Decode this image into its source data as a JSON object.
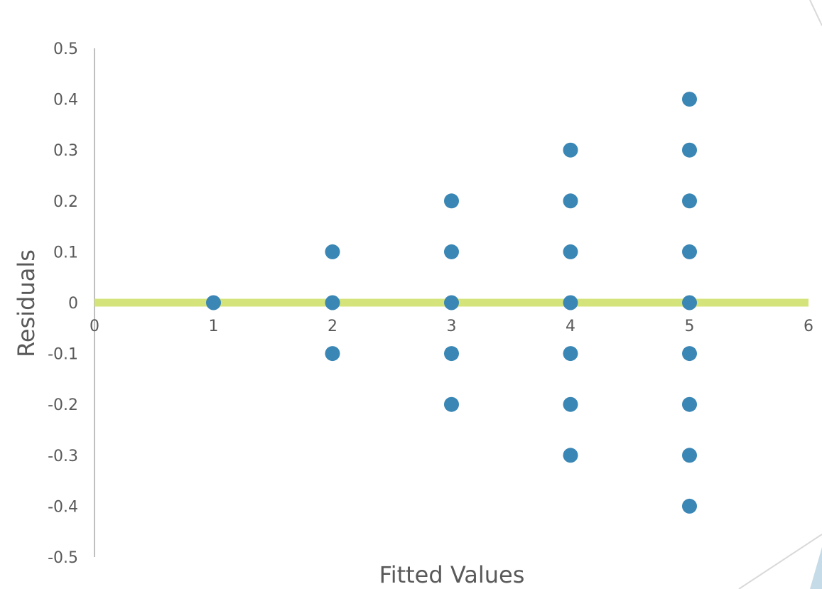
{
  "chart_data": {
    "type": "scatter",
    "title": "",
    "xlabel": "Fitted Values",
    "ylabel": "Residuals",
    "xlim": [
      0,
      6
    ],
    "ylim": [
      -0.5,
      0.5
    ],
    "x_ticks": [
      0,
      1,
      2,
      3,
      4,
      5,
      6
    ],
    "y_ticks": [
      0.5,
      0.4,
      0.3,
      0.2,
      0.1,
      0,
      -0.1,
      -0.2,
      -0.3,
      -0.4,
      -0.5
    ],
    "x_tick_labels": [
      "0",
      "1",
      "2",
      "3",
      "4",
      "5",
      "6"
    ],
    "y_tick_labels": [
      "0.5",
      "0.4",
      "0.3",
      "0.2",
      "0.1",
      "0",
      "-0.1",
      "-0.2",
      "-0.3",
      "-0.4",
      "-0.5"
    ],
    "grid": false,
    "legend": "none",
    "reference_line": {
      "y": 0,
      "color": "#d4e47a"
    },
    "series": [
      {
        "color": "#3a86b4",
        "points": [
          {
            "x": 1,
            "y": 0
          },
          {
            "x": 2,
            "y": 0.1
          },
          {
            "x": 2,
            "y": 0
          },
          {
            "x": 2,
            "y": -0.1
          },
          {
            "x": 3,
            "y": 0.2
          },
          {
            "x": 3,
            "y": 0.1
          },
          {
            "x": 3,
            "y": 0
          },
          {
            "x": 3,
            "y": -0.1
          },
          {
            "x": 3,
            "y": -0.2
          },
          {
            "x": 4,
            "y": 0.3
          },
          {
            "x": 4,
            "y": 0.2
          },
          {
            "x": 4,
            "y": 0.1
          },
          {
            "x": 4,
            "y": 0
          },
          {
            "x": 4,
            "y": -0.1
          },
          {
            "x": 4,
            "y": -0.2
          },
          {
            "x": 4,
            "y": -0.3
          },
          {
            "x": 5,
            "y": 0.4
          },
          {
            "x": 5,
            "y": 0.3
          },
          {
            "x": 5,
            "y": 0.2
          },
          {
            "x": 5,
            "y": 0.1
          },
          {
            "x": 5,
            "y": 0
          },
          {
            "x": 5,
            "y": -0.1
          },
          {
            "x": 5,
            "y": -0.2
          },
          {
            "x": 5,
            "y": -0.3
          },
          {
            "x": 5,
            "y": -0.4
          }
        ]
      }
    ]
  },
  "colors": {
    "axis": "#bfbfbf",
    "tick_text": "#595959",
    "decoration_line": "#d9d9d9",
    "decoration_fill": "#c5dbe8"
  }
}
